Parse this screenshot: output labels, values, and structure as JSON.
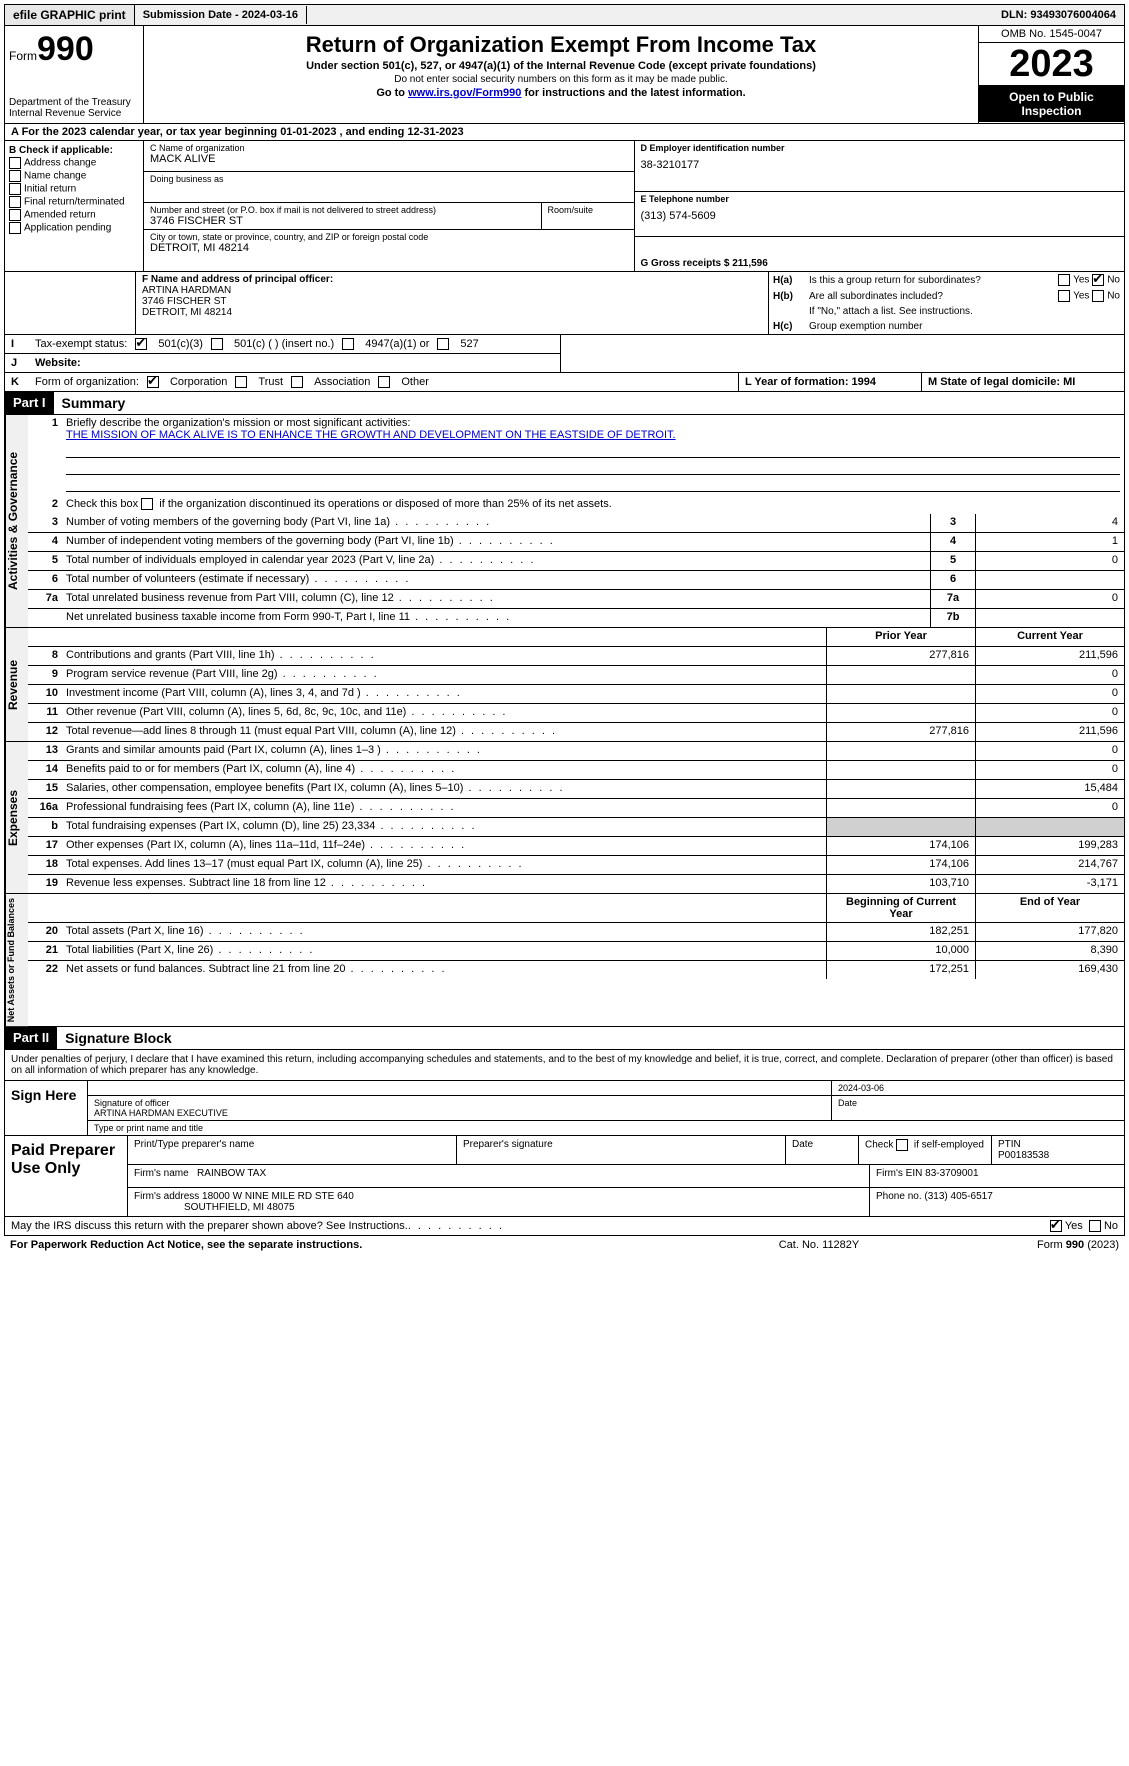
{
  "topbar": {
    "efile": "efile GRAPHIC print",
    "submission": "Submission Date - 2024-03-16",
    "dln": "DLN: 93493076004064"
  },
  "header": {
    "form_label": "Form",
    "form_num": "990",
    "dept": "Department of the Treasury Internal Revenue Service",
    "title": "Return of Organization Exempt From Income Tax",
    "sub1": "Under section 501(c), 527, or 4947(a)(1) of the Internal Revenue Code (except private foundations)",
    "sub2": "Do not enter social security numbers on this form as it may be made public.",
    "sub3_pre": "Go to ",
    "sub3_link": "www.irs.gov/Form990",
    "sub3_post": " for instructions and the latest information.",
    "omb": "OMB No. 1545-0047",
    "year": "2023",
    "open": "Open to Public Inspection"
  },
  "row_a": "A For the 2023 calendar year, or tax year beginning 01-01-2023    , and ending 12-31-2023",
  "col_b": {
    "title": "B Check if applicable:",
    "opts": [
      "Address change",
      "Name change",
      "Initial return",
      "Final return/terminated",
      "Amended return",
      "Application pending"
    ]
  },
  "org": {
    "c_name_label": "C Name of organization",
    "c_name": "MACK ALIVE",
    "dba_label": "Doing business as",
    "addr_label": "Number and street (or P.O. box if mail is not delivered to street address)",
    "room_label": "Room/suite",
    "addr": "3746 FISCHER ST",
    "city_label": "City or town, state or province, country, and ZIP or foreign postal code",
    "city": "DETROIT, MI  48214",
    "f_label": "F  Name and address of principal officer:",
    "f_name": "ARTINA HARDMAN",
    "f_addr": "3746 FISCHER ST",
    "f_city": "DETROIT, MI  48214"
  },
  "right": {
    "d_label": "D Employer identification number",
    "d_val": "38-3210177",
    "e_label": "E Telephone number",
    "e_val": "(313) 574-5609",
    "g_label": "G Gross receipts $ 211,596",
    "ha_label": "Is this a group return for subordinates?",
    "hb_label": "Are all subordinates included?",
    "h_note": "If \"No,\" attach a list. See instructions.",
    "hc_label": "Group exemption number",
    "ha_lbl": "H(a)",
    "hb_lbl": "H(b)",
    "hc_lbl": "H(c)",
    "yes": "Yes",
    "no": "No"
  },
  "i": {
    "label": "I",
    "title": "Tax-exempt status:",
    "opt1": "501(c)(3)",
    "opt2": "501(c) (  ) (insert no.)",
    "opt3": "4947(a)(1) or",
    "opt4": "527"
  },
  "j": {
    "label": "J",
    "title": "Website:"
  },
  "k": {
    "label": "K",
    "title": "Form of organization:",
    "opts": [
      "Corporation",
      "Trust",
      "Association",
      "Other"
    ]
  },
  "l": {
    "label": "L Year of formation: 1994"
  },
  "m": {
    "label": "M State of legal domicile: MI"
  },
  "part1": {
    "header": "Part I",
    "title": "Summary",
    "l1_label": "Briefly describe the organization's mission or most significant activities:",
    "l1_mission": "THE MISSION OF MACK ALIVE IS TO ENHANCE THE GROWTH AND DEVELOPMENT ON THE EASTSIDE OF DETROIT.",
    "l2": "Check this box      if the organization discontinued its operations or disposed of more than 25% of its net assets.",
    "sides": {
      "gov": "Activities & Governance",
      "rev": "Revenue",
      "exp": "Expenses",
      "net": "Net Assets or Fund Balances"
    },
    "col_prior": "Prior Year",
    "col_current": "Current Year",
    "col_begin": "Beginning of Current Year",
    "col_end": "End of Year",
    "rows_gov": [
      {
        "n": "3",
        "d": "Number of voting members of the governing body (Part VI, line 1a)",
        "box": "3",
        "v": "4"
      },
      {
        "n": "4",
        "d": "Number of independent voting members of the governing body (Part VI, line 1b)",
        "box": "4",
        "v": "1"
      },
      {
        "n": "5",
        "d": "Total number of individuals employed in calendar year 2023 (Part V, line 2a)",
        "box": "5",
        "v": "0"
      },
      {
        "n": "6",
        "d": "Total number of volunteers (estimate if necessary)",
        "box": "6",
        "v": ""
      },
      {
        "n": "7a",
        "d": "Total unrelated business revenue from Part VIII, column (C), line 12",
        "box": "7a",
        "v": "0"
      },
      {
        "n": "",
        "d": "Net unrelated business taxable income from Form 990-T, Part I, line 11",
        "box": "7b",
        "v": ""
      }
    ],
    "rows_rev": [
      {
        "n": "8",
        "d": "Contributions and grants (Part VIII, line 1h)",
        "p": "277,816",
        "c": "211,596"
      },
      {
        "n": "9",
        "d": "Program service revenue (Part VIII, line 2g)",
        "p": "",
        "c": "0"
      },
      {
        "n": "10",
        "d": "Investment income (Part VIII, column (A), lines 3, 4, and 7d )",
        "p": "",
        "c": "0"
      },
      {
        "n": "11",
        "d": "Other revenue (Part VIII, column (A), lines 5, 6d, 8c, 9c, 10c, and 11e)",
        "p": "",
        "c": "0"
      },
      {
        "n": "12",
        "d": "Total revenue—add lines 8 through 11 (must equal Part VIII, column (A), line 12)",
        "p": "277,816",
        "c": "211,596"
      }
    ],
    "rows_exp": [
      {
        "n": "13",
        "d": "Grants and similar amounts paid (Part IX, column (A), lines 1–3 )",
        "p": "",
        "c": "0"
      },
      {
        "n": "14",
        "d": "Benefits paid to or for members (Part IX, column (A), line 4)",
        "p": "",
        "c": "0"
      },
      {
        "n": "15",
        "d": "Salaries, other compensation, employee benefits (Part IX, column (A), lines 5–10)",
        "p": "",
        "c": "15,484"
      },
      {
        "n": "16a",
        "d": "Professional fundraising fees (Part IX, column (A), line 11e)",
        "p": "",
        "c": "0"
      },
      {
        "n": "b",
        "d": "Total fundraising expenses (Part IX, column (D), line 25) 23,334",
        "p": "shade",
        "c": "shade"
      },
      {
        "n": "17",
        "d": "Other expenses (Part IX, column (A), lines 11a–11d, 11f–24e)",
        "p": "174,106",
        "c": "199,283"
      },
      {
        "n": "18",
        "d": "Total expenses. Add lines 13–17 (must equal Part IX, column (A), line 25)",
        "p": "174,106",
        "c": "214,767"
      },
      {
        "n": "19",
        "d": "Revenue less expenses. Subtract line 18 from line 12",
        "p": "103,710",
        "c": "-3,171"
      }
    ],
    "rows_net": [
      {
        "n": "20",
        "d": "Total assets (Part X, line 16)",
        "p": "182,251",
        "c": "177,820"
      },
      {
        "n": "21",
        "d": "Total liabilities (Part X, line 26)",
        "p": "10,000",
        "c": "8,390"
      },
      {
        "n": "22",
        "d": "Net assets or fund balances. Subtract line 21 from line 20",
        "p": "172,251",
        "c": "169,430"
      }
    ]
  },
  "part2": {
    "header": "Part II",
    "title": "Signature Block",
    "decl": "Under penalties of perjury, I declare that I have examined this return, including accompanying schedules and statements, and to the best of my knowledge and belief, it is true, correct, and complete. Declaration of preparer (other than officer) is based on all information of which preparer has any knowledge.",
    "sign_here": "Sign Here",
    "sig_officer_label": "Signature of officer",
    "sig_officer": "ARTINA HARDMAN  EXECUTIVE",
    "sig_type_label": "Type or print name and title",
    "date_label": "Date",
    "date": "2024-03-06",
    "paid": "Paid Preparer Use Only",
    "prep_name_label": "Print/Type preparer's name",
    "prep_sig_label": "Preparer's signature",
    "check_self": "Check        if self-employed",
    "ptin_label": "PTIN",
    "ptin": "P00183538",
    "firm_name_label": "Firm's name",
    "firm_name": "RAINBOW TAX",
    "firm_ein_label": "Firm's EIN",
    "firm_ein": "83-3709001",
    "firm_addr_label": "Firm's address",
    "firm_addr1": "18000 W NINE MILE RD STE 640",
    "firm_addr2": "SOUTHFIELD, MI  48075",
    "phone_label": "Phone no.",
    "phone": "(313) 405-6517",
    "discuss": "May the IRS discuss this return with the preparer shown above? See Instructions."
  },
  "footer": {
    "pra": "For Paperwork Reduction Act Notice, see the separate instructions.",
    "cat": "Cat. No. 11282Y",
    "form": "Form 990 (2023)"
  }
}
